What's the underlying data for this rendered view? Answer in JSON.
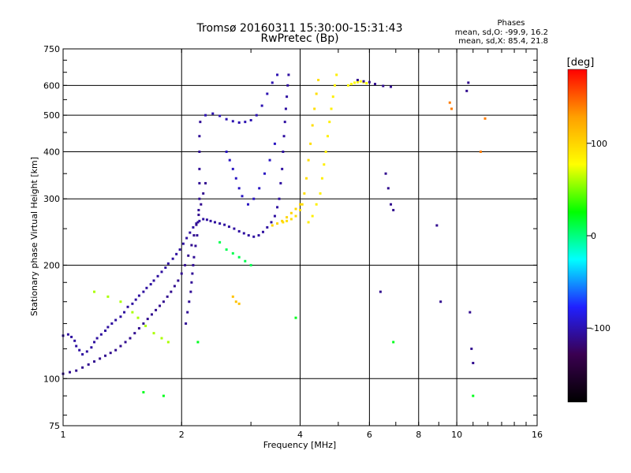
{
  "chart_data": {
    "type": "scatter",
    "title": "Tromsø 20160311 15:30:00-15:31:43",
    "subtitle": "RwPretec (Bp)",
    "xlabel": "Frequency [MHz]",
    "ylabel": "Stationary phase Virtual Height [km]",
    "x_scale": "log",
    "y_scale": "log",
    "xlim": [
      1,
      16
    ],
    "ylim": [
      75,
      750
    ],
    "x_ticks": [
      1,
      2,
      4,
      6,
      8,
      10,
      16
    ],
    "y_ticks": [
      75,
      100,
      200,
      300,
      400,
      500,
      600,
      750
    ],
    "grid": true,
    "stats": {
      "heading": "Phases",
      "o_line": "mean, sd,O:  -99.9, 16.2",
      "x_line": "mean, sd,X:  85.4, 21.8"
    },
    "colorbar": {
      "label": "[deg]",
      "ticks": [
        100,
        0,
        -100
      ],
      "range": [
        -180,
        180
      ],
      "colors": [
        "#000000",
        "#3a0050",
        "#2020ff",
        "#00ffff",
        "#00ff00",
        "#ffff00",
        "#ffa000",
        "#ff0000"
      ]
    },
    "series": [
      {
        "points": [
          [
            1.0,
            130
          ],
          [
            1.03,
            131
          ],
          [
            1.05,
            129
          ],
          [
            1.07,
            126
          ],
          [
            1.08,
            122
          ],
          [
            1.1,
            119
          ],
          [
            1.12,
            116
          ],
          [
            1.15,
            118
          ],
          [
            1.18,
            121
          ],
          [
            1.2,
            125
          ],
          [
            1.22,
            128
          ],
          [
            1.25,
            131
          ],
          [
            1.28,
            134
          ],
          [
            1.3,
            137
          ],
          [
            1.33,
            140
          ],
          [
            1.36,
            143
          ],
          [
            1.4,
            146
          ],
          [
            1.43,
            150
          ],
          [
            1.46,
            155
          ],
          [
            1.5,
            158
          ],
          [
            1.53,
            162
          ],
          [
            1.56,
            166
          ],
          [
            1.6,
            170
          ],
          [
            1.63,
            174
          ],
          [
            1.67,
            178
          ],
          [
            1.7,
            182
          ],
          [
            1.74,
            187
          ],
          [
            1.78,
            192
          ],
          [
            1.82,
            197
          ],
          [
            1.85,
            202
          ],
          [
            1.9,
            208
          ],
          [
            1.94,
            214
          ],
          [
            1.98,
            220
          ],
          [
            2.02,
            228
          ],
          [
            2.06,
            236
          ],
          [
            2.1,
            244
          ],
          [
            2.14,
            252
          ],
          [
            2.18,
            258
          ],
          [
            2.22,
            262
          ],
          [
            2.27,
            265
          ],
          [
            2.32,
            264
          ],
          [
            2.37,
            262
          ],
          [
            2.43,
            260
          ],
          [
            2.5,
            258
          ],
          [
            2.57,
            256
          ],
          [
            2.64,
            253
          ],
          [
            2.72,
            250
          ],
          [
            2.8,
            246
          ],
          [
            2.88,
            243
          ],
          [
            2.96,
            240
          ],
          [
            3.05,
            238
          ],
          [
            3.14,
            240
          ],
          [
            3.22,
            245
          ],
          [
            3.3,
            252
          ],
          [
            3.38,
            260
          ],
          [
            3.45,
            270
          ],
          [
            3.5,
            285
          ],
          [
            3.54,
            300
          ],
          [
            3.57,
            330
          ],
          [
            3.6,
            360
          ],
          [
            3.62,
            400
          ],
          [
            3.64,
            440
          ],
          [
            3.66,
            480
          ],
          [
            3.68,
            520
          ],
          [
            3.7,
            560
          ],
          [
            3.72,
            600
          ],
          [
            3.74,
            640
          ]
        ],
        "value": -105
      },
      {
        "points": [
          [
            1.0,
            103
          ],
          [
            1.04,
            104
          ],
          [
            1.08,
            105
          ],
          [
            1.12,
            107
          ],
          [
            1.16,
            109
          ],
          [
            1.2,
            111
          ],
          [
            1.24,
            113
          ],
          [
            1.28,
            115
          ],
          [
            1.32,
            117
          ],
          [
            1.36,
            119
          ],
          [
            1.4,
            122
          ],
          [
            1.44,
            125
          ],
          [
            1.48,
            128
          ],
          [
            1.52,
            132
          ],
          [
            1.56,
            136
          ],
          [
            1.6,
            140
          ],
          [
            1.64,
            144
          ],
          [
            1.68,
            148
          ],
          [
            1.72,
            152
          ],
          [
            1.76,
            156
          ],
          [
            1.8,
            160
          ],
          [
            1.84,
            165
          ],
          [
            1.88,
            170
          ],
          [
            1.92,
            176
          ],
          [
            1.96,
            182
          ],
          [
            2.0,
            190
          ],
          [
            2.04,
            200
          ],
          [
            2.08,
            212
          ],
          [
            2.12,
            226
          ],
          [
            2.15,
            240
          ],
          [
            2.18,
            256
          ],
          [
            2.21,
            272
          ],
          [
            2.24,
            290
          ],
          [
            2.27,
            310
          ],
          [
            2.3,
            330
          ]
        ],
        "value": -110
      },
      {
        "points": [
          [
            2.05,
            140
          ],
          [
            2.07,
            150
          ],
          [
            2.09,
            160
          ],
          [
            2.11,
            170
          ],
          [
            2.12,
            180
          ],
          [
            2.13,
            190
          ],
          [
            2.14,
            200
          ],
          [
            2.15,
            210
          ],
          [
            2.17,
            225
          ],
          [
            2.19,
            240
          ],
          [
            2.2,
            260
          ],
          [
            2.21,
            280
          ],
          [
            2.22,
            300
          ],
          [
            2.22,
            330
          ],
          [
            2.22,
            360
          ],
          [
            2.22,
            400
          ],
          [
            2.22,
            440
          ],
          [
            2.23,
            480
          ]
        ],
        "value": -108
      },
      {
        "points": [
          [
            2.3,
            500
          ],
          [
            2.4,
            505
          ],
          [
            2.5,
            498
          ],
          [
            2.6,
            488
          ],
          [
            2.7,
            482
          ],
          [
            2.8,
            478
          ],
          [
            2.9,
            480
          ],
          [
            3.0,
            485
          ],
          [
            3.1,
            500
          ],
          [
            3.2,
            530
          ],
          [
            3.3,
            570
          ],
          [
            3.4,
            610
          ],
          [
            3.5,
            640
          ]
        ],
        "value": -100
      },
      {
        "points": [
          [
            2.6,
            400
          ],
          [
            2.65,
            380
          ],
          [
            2.7,
            360
          ],
          [
            2.75,
            340
          ],
          [
            2.8,
            320
          ],
          [
            2.85,
            305
          ],
          [
            2.95,
            290
          ],
          [
            3.05,
            300
          ],
          [
            3.15,
            320
          ],
          [
            3.25,
            350
          ],
          [
            3.35,
            380
          ],
          [
            3.45,
            420
          ]
        ],
        "value": -95
      },
      {
        "points": [
          [
            3.62,
            260
          ],
          [
            3.7,
            262
          ],
          [
            3.8,
            265
          ],
          [
            3.9,
            270
          ],
          [
            4.0,
            280
          ],
          [
            4.05,
            290
          ],
          [
            4.1,
            310
          ],
          [
            4.15,
            340
          ],
          [
            4.2,
            380
          ],
          [
            4.25,
            420
          ],
          [
            4.3,
            470
          ],
          [
            4.35,
            520
          ],
          [
            4.4,
            570
          ],
          [
            4.45,
            620
          ]
        ],
        "value": 95
      },
      {
        "points": [
          [
            4.2,
            260
          ],
          [
            4.3,
            270
          ],
          [
            4.4,
            290
          ],
          [
            4.5,
            310
          ],
          [
            4.55,
            340
          ],
          [
            4.6,
            370
          ],
          [
            4.65,
            400
          ],
          [
            4.7,
            440
          ],
          [
            4.75,
            480
          ],
          [
            4.8,
            520
          ],
          [
            4.85,
            560
          ],
          [
            4.9,
            600
          ],
          [
            4.95,
            640
          ]
        ],
        "value": 85
      },
      {
        "points": [
          [
            3.4,
            255
          ],
          [
            3.5,
            258
          ],
          [
            3.6,
            262
          ],
          [
            3.7,
            268
          ],
          [
            3.8,
            275
          ],
          [
            3.9,
            282
          ],
          [
            4.0,
            290
          ]
        ],
        "value": 100
      },
      {
        "points": [
          [
            5.3,
            600
          ],
          [
            5.4,
            605
          ],
          [
            5.5,
            610
          ],
          [
            5.6,
            612
          ],
          [
            5.7,
            615
          ],
          [
            5.8,
            612
          ],
          [
            5.9,
            608
          ]
        ],
        "value": 80
      },
      {
        "points": [
          [
            5.6,
            620
          ],
          [
            5.8,
            615
          ],
          [
            6.0,
            612
          ],
          [
            6.2,
            605
          ],
          [
            6.5,
            598
          ],
          [
            6.8,
            595
          ]
        ],
        "value": -110
      },
      {
        "points": [
          [
            1.2,
            170
          ],
          [
            1.3,
            165
          ],
          [
            1.4,
            160
          ],
          [
            1.5,
            150
          ],
          [
            1.55,
            145
          ],
          [
            1.62,
            138
          ],
          [
            1.7,
            132
          ],
          [
            1.78,
            128
          ],
          [
            1.85,
            125
          ]
        ],
        "value": 60
      },
      {
        "points": [
          [
            2.5,
            230
          ],
          [
            2.6,
            220
          ],
          [
            2.7,
            215
          ],
          [
            2.8,
            210
          ],
          [
            2.9,
            205
          ],
          [
            3.0,
            200
          ]
        ],
        "value": 10
      },
      {
        "points": [
          [
            2.7,
            165
          ],
          [
            2.75,
            160
          ],
          [
            2.8,
            158
          ]
        ],
        "value": 110
      },
      {
        "points": [
          [
            6.6,
            350
          ],
          [
            6.7,
            320
          ],
          [
            6.8,
            290
          ],
          [
            6.9,
            280
          ]
        ],
        "value": -110
      },
      {
        "points": [
          [
            6.4,
            170
          ],
          [
            8.9,
            255
          ],
          [
            9.1,
            160
          ],
          [
            10.8,
            150
          ],
          [
            10.9,
            120
          ],
          [
            11.0,
            110
          ],
          [
            10.7,
            610
          ],
          [
            10.6,
            580
          ]
        ],
        "value": -110
      },
      {
        "points": [
          [
            9.6,
            540
          ],
          [
            9.7,
            520
          ],
          [
            11.5,
            400
          ],
          [
            11.8,
            490
          ]
        ],
        "value": 140
      },
      {
        "points": [
          [
            1.6,
            92
          ],
          [
            1.8,
            90
          ],
          [
            2.2,
            125
          ],
          [
            3.9,
            145
          ],
          [
            6.9,
            125
          ],
          [
            11.0,
            90
          ]
        ],
        "value": 20
      }
    ]
  }
}
